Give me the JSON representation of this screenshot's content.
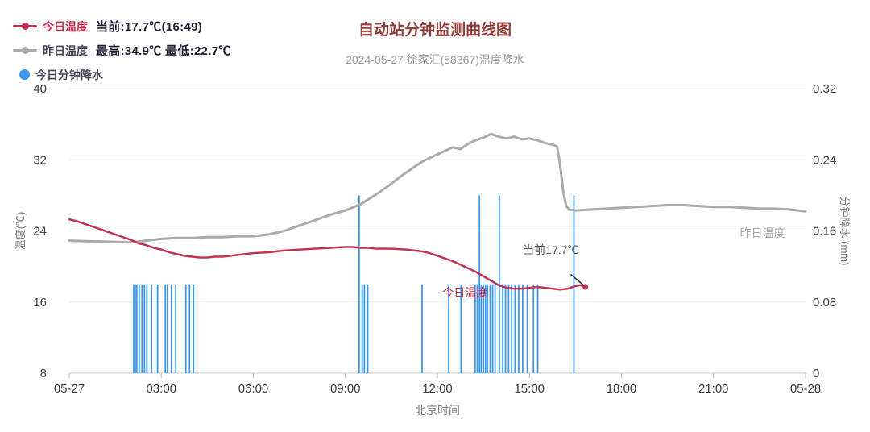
{
  "header": {
    "title": "自动站分钟监测曲线图",
    "subtitle": "2024-05-27 徐家汇(58367)温度降水"
  },
  "legend": {
    "items": [
      {
        "label": "今日温度",
        "label_color": "#c2304e",
        "detail": "当前:17.7℃(16:49)",
        "color": "#c2304e",
        "marker": "line-dot"
      },
      {
        "label": "昨日温度",
        "label_color": "#46465a",
        "detail": "最高:34.9℃ 最低:22.7℃",
        "color": "#ababab",
        "marker": "line-dot"
      },
      {
        "label": "今日分钟降水",
        "label_color": "#46465a",
        "detail": "",
        "color": "#3e97ef",
        "marker": "circle"
      }
    ]
  },
  "chart_data": {
    "type": "line+bar",
    "title": "自动站分钟监测曲线图",
    "subtitle": "2024-05-27 徐家汇(58367)温度降水",
    "x_axis": {
      "label": "北京时间",
      "range_hours": [
        0,
        24
      ],
      "ticks": [
        {
          "t": 0,
          "label": "05-27"
        },
        {
          "t": 3,
          "label": "03:00"
        },
        {
          "t": 6,
          "label": "06:00"
        },
        {
          "t": 9,
          "label": "09:00"
        },
        {
          "t": 12,
          "label": "12:00"
        },
        {
          "t": 15,
          "label": "15:00"
        },
        {
          "t": 18,
          "label": "18:00"
        },
        {
          "t": 21,
          "label": "21:00"
        },
        {
          "t": 24,
          "label": "05-28"
        }
      ]
    },
    "y_axis_left": {
      "label": "温度(℃)",
      "min": 8,
      "max": 40,
      "ticks": [
        {
          "v": 8,
          "label": "8"
        },
        {
          "v": 16,
          "label": "16"
        },
        {
          "v": 24,
          "label": "24"
        },
        {
          "v": 32,
          "label": "32"
        },
        {
          "v": 40,
          "label": "40"
        }
      ]
    },
    "y_axis_right": {
      "label": "分钟降水 (mm)",
      "min": 0,
      "max": 0.32,
      "ticks": [
        {
          "v": 0,
          "label": "0"
        },
        {
          "v": 0.08,
          "label": "0.08"
        },
        {
          "v": 0.16,
          "label": "0.16"
        },
        {
          "v": 0.24,
          "label": "0.24"
        },
        {
          "v": 0.32,
          "label": "0.32"
        }
      ]
    },
    "series": [
      {
        "name": "昨日温度",
        "type": "line",
        "axis": "left",
        "color": "#ababab",
        "width": 3,
        "points": [
          [
            0,
            22.9
          ],
          [
            0.5,
            22.85
          ],
          [
            1,
            22.8
          ],
          [
            1.5,
            22.75
          ],
          [
            2,
            22.7
          ],
          [
            2.5,
            22.9
          ],
          [
            3,
            23.1
          ],
          [
            3.5,
            23.2
          ],
          [
            4,
            23.2
          ],
          [
            4.5,
            23.3
          ],
          [
            5,
            23.3
          ],
          [
            5.5,
            23.4
          ],
          [
            6,
            23.4
          ],
          [
            6.5,
            23.6
          ],
          [
            7,
            24.0
          ],
          [
            7.5,
            24.6
          ],
          [
            8,
            25.2
          ],
          [
            8.5,
            25.8
          ],
          [
            9,
            26.3
          ],
          [
            9.5,
            27.0
          ],
          [
            10,
            28.1
          ],
          [
            10.25,
            28.7
          ],
          [
            10.5,
            29.3
          ],
          [
            10.75,
            30.0
          ],
          [
            11,
            30.6
          ],
          [
            11.25,
            31.2
          ],
          [
            11.5,
            31.8
          ],
          [
            11.75,
            32.2
          ],
          [
            12,
            32.6
          ],
          [
            12.25,
            33.0
          ],
          [
            12.5,
            33.4
          ],
          [
            12.75,
            33.2
          ],
          [
            13,
            33.8
          ],
          [
            13.25,
            34.2
          ],
          [
            13.5,
            34.5
          ],
          [
            13.75,
            34.9
          ],
          [
            14,
            34.6
          ],
          [
            14.25,
            34.4
          ],
          [
            14.5,
            34.6
          ],
          [
            14.75,
            34.3
          ],
          [
            15,
            34.4
          ],
          [
            15.25,
            34.2
          ],
          [
            15.5,
            33.9
          ],
          [
            15.75,
            33.7
          ],
          [
            15.9,
            33.5
          ],
          [
            16,
            31.5
          ],
          [
            16.1,
            28.5
          ],
          [
            16.2,
            26.8
          ],
          [
            16.3,
            26.4
          ],
          [
            16.5,
            26.3
          ],
          [
            17,
            26.4
          ],
          [
            17.5,
            26.5
          ],
          [
            18,
            26.6
          ],
          [
            18.5,
            26.7
          ],
          [
            19,
            26.8
          ],
          [
            19.5,
            26.9
          ],
          [
            20,
            26.9
          ],
          [
            20.5,
            26.8
          ],
          [
            21,
            26.7
          ],
          [
            21.5,
            26.7
          ],
          [
            22,
            26.6
          ],
          [
            22.5,
            26.5
          ],
          [
            23,
            26.5
          ],
          [
            23.5,
            26.4
          ],
          [
            24,
            26.2
          ]
        ]
      },
      {
        "name": "今日温度",
        "type": "line",
        "axis": "left",
        "color": "#c2304e",
        "width": 2.4,
        "points": [
          [
            0,
            25.3
          ],
          [
            0.25,
            25.1
          ],
          [
            0.5,
            24.8
          ],
          [
            0.75,
            24.5
          ],
          [
            1,
            24.2
          ],
          [
            1.25,
            23.9
          ],
          [
            1.5,
            23.6
          ],
          [
            1.75,
            23.3
          ],
          [
            2,
            23.0
          ],
          [
            2.25,
            22.6
          ],
          [
            2.5,
            22.4
          ],
          [
            2.75,
            22.1
          ],
          [
            3,
            21.9
          ],
          [
            3.25,
            21.6
          ],
          [
            3.5,
            21.4
          ],
          [
            3.75,
            21.2
          ],
          [
            4,
            21.1
          ],
          [
            4.25,
            21.0
          ],
          [
            4.5,
            21.0
          ],
          [
            4.75,
            21.1
          ],
          [
            5,
            21.1
          ],
          [
            5.25,
            21.2
          ],
          [
            5.5,
            21.3
          ],
          [
            5.75,
            21.4
          ],
          [
            6,
            21.5
          ],
          [
            6.5,
            21.6
          ],
          [
            7,
            21.8
          ],
          [
            7.5,
            21.9
          ],
          [
            8,
            22.0
          ],
          [
            8.5,
            22.1
          ],
          [
            9,
            22.2
          ],
          [
            9.25,
            22.2
          ],
          [
            9.5,
            22.1
          ],
          [
            9.75,
            22.1
          ],
          [
            10,
            22.0
          ],
          [
            10.5,
            22.0
          ],
          [
            11,
            21.9
          ],
          [
            11.25,
            21.8
          ],
          [
            11.5,
            21.7
          ],
          [
            11.75,
            21.5
          ],
          [
            12,
            21.2
          ],
          [
            12.25,
            20.9
          ],
          [
            12.5,
            20.6
          ],
          [
            12.75,
            20.2
          ],
          [
            13,
            19.8
          ],
          [
            13.25,
            19.4
          ],
          [
            13.5,
            18.9
          ],
          [
            13.75,
            18.4
          ],
          [
            14,
            17.9
          ],
          [
            14.25,
            17.6
          ],
          [
            14.5,
            17.5
          ],
          [
            14.75,
            17.5
          ],
          [
            15,
            17.6
          ],
          [
            15.25,
            17.7
          ],
          [
            15.5,
            17.6
          ],
          [
            15.75,
            17.5
          ],
          [
            16,
            17.4
          ],
          [
            16.25,
            17.5
          ],
          [
            16.5,
            17.8
          ],
          [
            16.65,
            17.9
          ],
          [
            16.82,
            17.7
          ]
        ],
        "end_marker": {
          "t": 16.82,
          "v": 17.7
        }
      },
      {
        "name": "今日分钟降水",
        "type": "bar",
        "axis": "right",
        "color": "#3e97ef",
        "bar_width": 1.8,
        "points": [
          [
            2.1,
            0.1
          ],
          [
            2.15,
            0.1
          ],
          [
            2.2,
            0.1
          ],
          [
            2.28,
            0.1
          ],
          [
            2.37,
            0.1
          ],
          [
            2.45,
            0.1
          ],
          [
            2.53,
            0.1
          ],
          [
            2.68,
            0.1
          ],
          [
            2.88,
            0.1
          ],
          [
            3.13,
            0.1
          ],
          [
            3.2,
            0.1
          ],
          [
            3.33,
            0.1
          ],
          [
            3.47,
            0.1
          ],
          [
            3.8,
            0.1
          ],
          [
            3.92,
            0.1
          ],
          [
            4.05,
            0.1
          ],
          [
            9.45,
            0.2
          ],
          [
            9.55,
            0.1
          ],
          [
            9.62,
            0.1
          ],
          [
            9.73,
            0.1
          ],
          [
            11.5,
            0.1
          ],
          [
            12.37,
            0.1
          ],
          [
            12.77,
            0.1
          ],
          [
            13.23,
            0.1
          ],
          [
            13.3,
            0.1
          ],
          [
            13.37,
            0.2
          ],
          [
            13.43,
            0.1
          ],
          [
            13.5,
            0.1
          ],
          [
            13.57,
            0.1
          ],
          [
            13.63,
            0.1
          ],
          [
            13.72,
            0.1
          ],
          [
            13.8,
            0.1
          ],
          [
            13.88,
            0.1
          ],
          [
            14.02,
            0.2
          ],
          [
            14.13,
            0.1
          ],
          [
            14.22,
            0.1
          ],
          [
            14.32,
            0.1
          ],
          [
            14.42,
            0.1
          ],
          [
            14.53,
            0.1
          ],
          [
            14.65,
            0.1
          ],
          [
            14.78,
            0.1
          ],
          [
            14.93,
            0.1
          ],
          [
            15.13,
            0.1
          ],
          [
            15.27,
            0.1
          ],
          [
            16.45,
            0.2
          ]
        ]
      }
    ],
    "annotations": [
      {
        "type": "text",
        "text": "当前17.7℃",
        "t": 15.7,
        "temp": 21.4,
        "color": "#555555",
        "size": 14,
        "name": "current-temp-annotation"
      },
      {
        "type": "text",
        "text": "今日温度",
        "t": 12.9,
        "temp": 16.6,
        "color": "#c2304e",
        "size": 14,
        "name": "today-temp-line-label"
      },
      {
        "type": "text",
        "text": "昨日温度",
        "t": 22.6,
        "temp": 23.3,
        "color": "#a5a5a5",
        "size": 14,
        "name": "yesterday-temp-line-label"
      },
      {
        "type": "line",
        "from": [
          16.35,
          19.1
        ],
        "to": [
          16.78,
          17.85
        ],
        "color": "#2b2b2b",
        "name": "current-point-pointer"
      }
    ],
    "grid": {
      "on": true,
      "line_color": "#ececec",
      "axis_line_color": "#cccccc"
    },
    "legend_position": "top-left"
  }
}
